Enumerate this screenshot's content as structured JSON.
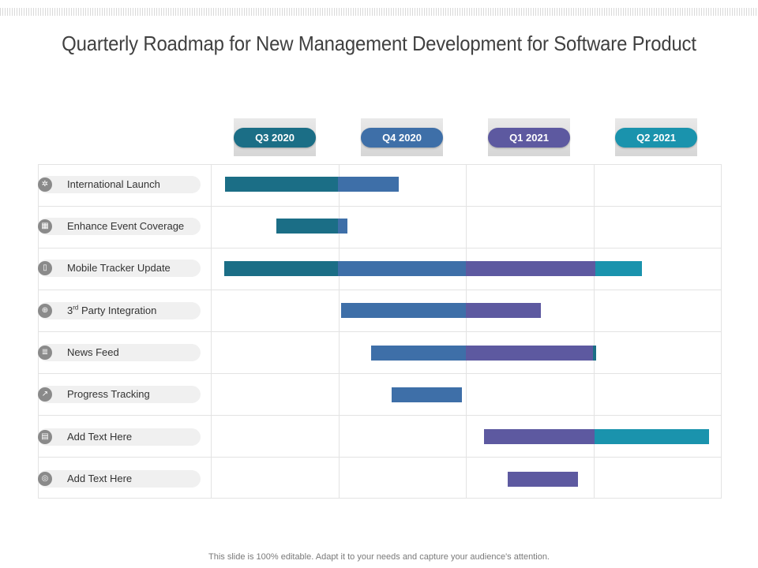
{
  "title": "Quarterly Roadmap for New Management Development for Software Product",
  "quarters": [
    {
      "label": "Q3 2020",
      "color": "#1b6e86"
    },
    {
      "label": "Q4 2020",
      "color": "#3e6fa8"
    },
    {
      "label": "Q1 2021",
      "color": "#5d59a0"
    },
    {
      "label": "Q2 2021",
      "color": "#1a93ad"
    }
  ],
  "tasks": [
    {
      "label": "International Launch",
      "icon": "globe-icon",
      "glyph": "✲"
    },
    {
      "label": "Enhance Event Coverage",
      "icon": "calendar-icon",
      "glyph": "▦"
    },
    {
      "label": "Mobile Tracker Update",
      "icon": "mobile-icon",
      "glyph": "▯"
    },
    {
      "label_prefix": "3",
      "label_sup": "rd",
      "label_rest": " Party Integration",
      "icon": "integration-icon",
      "glyph": "⊕"
    },
    {
      "label": "News Feed",
      "icon": "news-icon",
      "glyph": "≣"
    },
    {
      "label": "Progress Tracking",
      "icon": "chart-icon",
      "glyph": "↗"
    },
    {
      "label": "Add Text Here",
      "icon": "document-icon",
      "glyph": "▤"
    },
    {
      "label": "Add Text Here",
      "icon": "target-icon",
      "glyph": "◎"
    }
  ],
  "footer": "This slide is 100% editable. Adapt it to your needs and capture your audience's attention."
}
